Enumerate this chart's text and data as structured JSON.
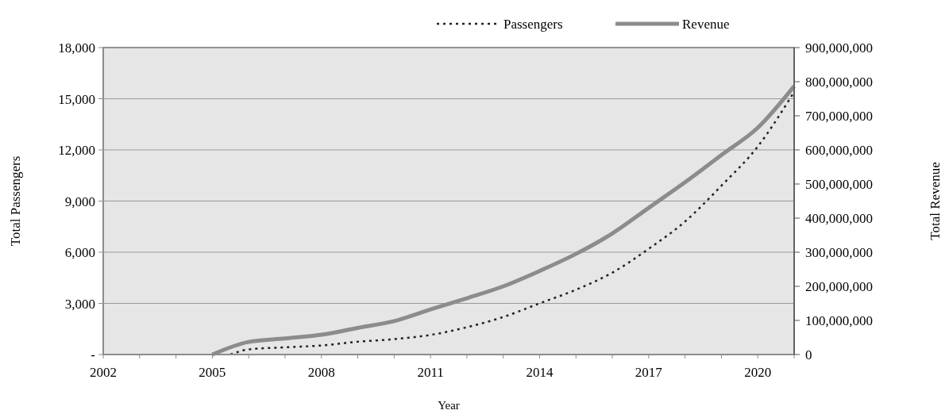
{
  "chart_data": {
    "type": "line",
    "xlabel": "Year",
    "ylabel": "Total Passengers",
    "y2label": "Total Revenue",
    "xlim": [
      2002,
      2021
    ],
    "xticks": [
      2002,
      2005,
      2008,
      2011,
      2014,
      2017,
      2020
    ],
    "ylim": [
      0,
      18000
    ],
    "yticks": [
      {
        "value": 0,
        "label": "-"
      },
      {
        "value": 3000,
        "label": "3,000"
      },
      {
        "value": 6000,
        "label": "6,000"
      },
      {
        "value": 9000,
        "label": "9,000"
      },
      {
        "value": 12000,
        "label": "12,000"
      },
      {
        "value": 15000,
        "label": "15,000"
      },
      {
        "value": 18000,
        "label": "18,000"
      }
    ],
    "y2lim": [
      0,
      900000000
    ],
    "y2ticks": [
      0,
      {
        "value": 100000000,
        "label": "100,000,000"
      },
      {
        "value": 200000000,
        "label": "200,000,000"
      },
      {
        "value": 300000000,
        "label": "300,000,000"
      },
      {
        "value": 400000000,
        "label": "400,000,000"
      },
      {
        "value": 500000000,
        "label": "500,000,000"
      },
      {
        "value": 600000000,
        "label": "600,000,000"
      },
      {
        "value": 700000000,
        "label": "700,000,000"
      },
      {
        "value": 800000000,
        "label": "800,000,000"
      },
      {
        "value": 900000000,
        "label": "900,000,000"
      }
    ],
    "grid": "y",
    "legend": "top right",
    "series": [
      {
        "name": "Passengers",
        "color": "#222222",
        "line_style": "dotted",
        "x": [
          2005.5,
          2006,
          2007,
          2008,
          2009,
          2010,
          2011,
          2012,
          2013,
          2014,
          2015,
          2016,
          2017,
          2018,
          2019,
          2020,
          2021
        ],
        "values": [
          0,
          300,
          420,
          530,
          750,
          900,
          1150,
          1600,
          2200,
          3000,
          3800,
          4800,
          6200,
          7800,
          9900,
          12200,
          15400
        ]
      },
      {
        "name": "Revenue",
        "color": "#8c8c8c",
        "line_style": "solid",
        "axis": "y2",
        "x": [
          2005,
          2006,
          2007,
          2008,
          2009,
          2010,
          2011,
          2012,
          2013,
          2014,
          2015,
          2016,
          2017,
          2018,
          2019,
          2020,
          2021
        ],
        "values": [
          0,
          37000000,
          47000000,
          58000000,
          78000000,
          98000000,
          132000000,
          165000000,
          200000000,
          245000000,
          295000000,
          355000000,
          430000000,
          505000000,
          585000000,
          665000000,
          787000000
        ]
      }
    ]
  }
}
